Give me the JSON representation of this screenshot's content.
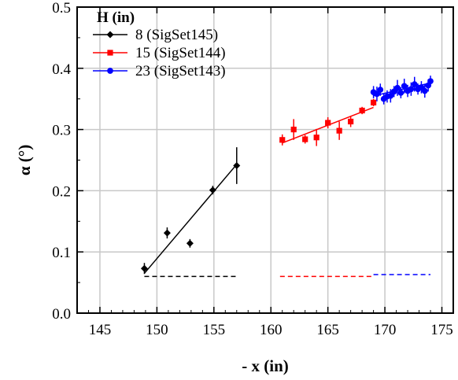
{
  "chart_data": {
    "type": "scatter",
    "xlabel": "- x (in)",
    "ylabel": "α (°)",
    "xlim": [
      143,
      176
    ],
    "ylim": [
      0.0,
      0.5
    ],
    "x_ticks": [
      145,
      150,
      155,
      160,
      165,
      170,
      175
    ],
    "y_ticks": [
      0.0,
      0.1,
      0.2,
      0.3,
      0.4,
      0.5
    ],
    "x_tick_labels": [
      "145",
      "150",
      "155",
      "160",
      "165",
      "170",
      "175"
    ],
    "y_tick_labels": [
      "0.0",
      "0.1",
      "0.2",
      "0.3",
      "0.4",
      "0.5"
    ],
    "grid": true,
    "legend": {
      "title": "H (in)",
      "placement": "top-left"
    },
    "series": [
      {
        "name": "8   (SigSet145)",
        "color": "#000000",
        "marker": "diamond",
        "points": [
          {
            "x": 148.9,
            "y": 0.073,
            "err": 0.009
          },
          {
            "x": 150.9,
            "y": 0.131,
            "err": 0.009
          },
          {
            "x": 152.9,
            "y": 0.114,
            "err": 0.007
          },
          {
            "x": 154.9,
            "y": 0.201,
            "err": 0.007
          },
          {
            "x": 157.0,
            "y": 0.241,
            "err": 0.03
          }
        ],
        "fit": {
          "x": [
            148.9,
            157.0
          ],
          "y": [
            0.065,
            0.243
          ]
        },
        "baseline": {
          "x": [
            148.9,
            157.0
          ],
          "y": 0.06
        }
      },
      {
        "name": "15 (SigSet144)",
        "color": "#ff0000",
        "marker": "square",
        "points": [
          {
            "x": 161.0,
            "y": 0.283,
            "err": 0.009
          },
          {
            "x": 162.0,
            "y": 0.3,
            "err": 0.017
          },
          {
            "x": 163.0,
            "y": 0.284,
            "err": 0.007
          },
          {
            "x": 164.0,
            "y": 0.287,
            "err": 0.014
          },
          {
            "x": 165.0,
            "y": 0.311,
            "err": 0.009
          },
          {
            "x": 166.0,
            "y": 0.298,
            "err": 0.015
          },
          {
            "x": 167.0,
            "y": 0.313,
            "err": 0.009
          },
          {
            "x": 168.0,
            "y": 0.331,
            "err": 0.006
          },
          {
            "x": 169.0,
            "y": 0.344,
            "err": 0.006
          }
        ],
        "fit": {
          "x": [
            161.0,
            169.0
          ],
          "y": [
            0.278,
            0.336
          ]
        },
        "baseline": {
          "x": [
            160.8,
            169.0
          ],
          "y": 0.06
        }
      },
      {
        "name": "23 (SigSet143)",
        "color": "#0000ff",
        "marker": "circle",
        "points": [
          {
            "x": 169.0,
            "y": 0.361,
            "err": 0.01
          },
          {
            "x": 169.3,
            "y": 0.358,
            "err": 0.012
          },
          {
            "x": 169.6,
            "y": 0.365,
            "err": 0.01
          },
          {
            "x": 169.9,
            "y": 0.35,
            "err": 0.009
          },
          {
            "x": 170.2,
            "y": 0.354,
            "err": 0.01
          },
          {
            "x": 170.5,
            "y": 0.355,
            "err": 0.011
          },
          {
            "x": 170.8,
            "y": 0.362,
            "err": 0.009
          },
          {
            "x": 171.1,
            "y": 0.368,
            "err": 0.013
          },
          {
            "x": 171.4,
            "y": 0.36,
            "err": 0.009
          },
          {
            "x": 171.7,
            "y": 0.371,
            "err": 0.012
          },
          {
            "x": 172.0,
            "y": 0.363,
            "err": 0.01
          },
          {
            "x": 172.3,
            "y": 0.366,
            "err": 0.011
          },
          {
            "x": 172.6,
            "y": 0.374,
            "err": 0.012
          },
          {
            "x": 172.9,
            "y": 0.366,
            "err": 0.009
          },
          {
            "x": 173.2,
            "y": 0.369,
            "err": 0.01
          },
          {
            "x": 173.5,
            "y": 0.363,
            "err": 0.011
          },
          {
            "x": 173.8,
            "y": 0.372,
            "err": 0.01
          },
          {
            "x": 174.0,
            "y": 0.379,
            "err": 0.009
          }
        ],
        "fit": {
          "x": [
            169.0,
            174.0
          ],
          "y": [
            0.355,
            0.376
          ]
        },
        "baseline": {
          "x": [
            169.0,
            174.0
          ],
          "y": 0.063
        }
      }
    ]
  }
}
